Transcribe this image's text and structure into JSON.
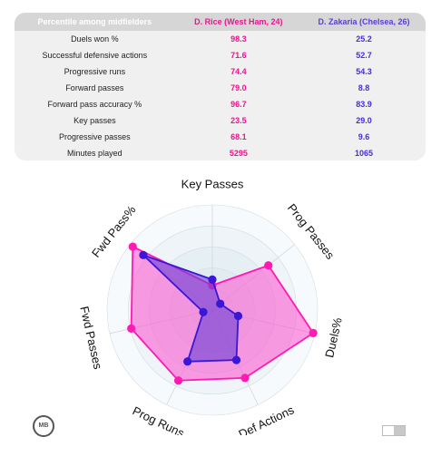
{
  "table": {
    "headers": [
      "Percentile among midfielders",
      "D. Rice (West Ham, 24)",
      "D. Zakaria (Chelsea, 26)"
    ],
    "rows": [
      {
        "metric": "Duels won %",
        "rice": "98.3",
        "zakaria": "25.2"
      },
      {
        "metric": "Successful defensive actions",
        "rice": "71.6",
        "zakaria": "52.7"
      },
      {
        "metric": "Progressive runs",
        "rice": "74.4",
        "zakaria": "54.3"
      },
      {
        "metric": "Forward passes",
        "rice": "79.0",
        "zakaria": "8.8"
      },
      {
        "metric": "Forward pass accuracy %",
        "rice": "96.7",
        "zakaria": "83.9"
      },
      {
        "metric": "Key passes",
        "rice": "23.5",
        "zakaria": "29.0"
      },
      {
        "metric": "Progressive passes",
        "rice": "68.1",
        "zakaria": "9.6"
      },
      {
        "metric": "Minutes played",
        "rice": "5295",
        "zakaria": "1065"
      }
    ]
  },
  "chart_data": {
    "type": "radar",
    "axes": [
      "Key Passes",
      "Prog Passes",
      "Duels%",
      "Def Actions",
      "Prog Runs",
      "Fwd Passes",
      "Fwd Pass%"
    ],
    "range": [
      0,
      100
    ],
    "series": [
      {
        "name": "D. Rice (West Ham, 24)",
        "color": "#ff1ab3",
        "fill": "#ff4fd0",
        "values": [
          23.5,
          68.1,
          98.3,
          71.6,
          74.4,
          79.0,
          96.7
        ]
      },
      {
        "name": "D. Zakaria (Chelsea, 26)",
        "color": "#3a16d6",
        "fill": "#6a3fd6",
        "values": [
          29.0,
          9.6,
          25.2,
          52.7,
          54.3,
          8.8,
          83.9
        ]
      }
    ]
  },
  "logo": {
    "text": "MB"
  }
}
